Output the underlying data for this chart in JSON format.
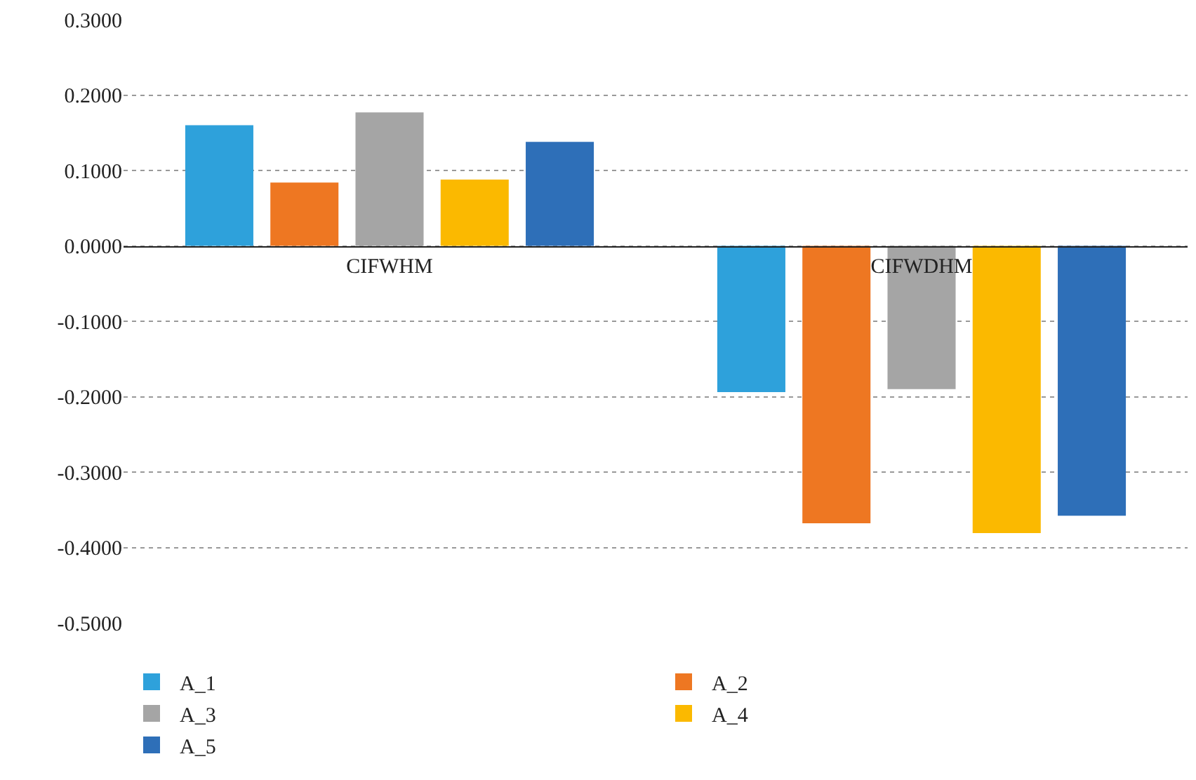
{
  "chart_data": {
    "type": "bar",
    "categories": [
      "CIFWHM",
      "CIFWDHM"
    ],
    "series": [
      {
        "name": "A_1",
        "color": "#2ea1db",
        "values": [
          0.16,
          -0.194
        ]
      },
      {
        "name": "A_2",
        "color": "#ee7722",
        "values": [
          0.084,
          -0.368
        ]
      },
      {
        "name": "A_3",
        "color": "#a5a5a5",
        "values": [
          0.177,
          -0.19
        ]
      },
      {
        "name": "A_4",
        "color": "#fbb900",
        "values": [
          0.088,
          -0.381
        ]
      },
      {
        "name": "A_5",
        "color": "#2e6fb8",
        "values": [
          0.138,
          -0.358
        ]
      }
    ],
    "ylim": [
      -0.5,
      0.3
    ],
    "yticks": [
      {
        "value": -0.5,
        "label": "-0.5000"
      },
      {
        "value": -0.4,
        "label": "-0.4000"
      },
      {
        "value": -0.3,
        "label": "-0.3000"
      },
      {
        "value": -0.2,
        "label": "-0.2000"
      },
      {
        "value": -0.1,
        "label": "-0.1000"
      },
      {
        "value": 0,
        "label": "0.0000"
      },
      {
        "value": 0.1,
        "label": "0.1000"
      },
      {
        "value": 0.2,
        "label": "0.2000"
      },
      {
        "value": 0.3,
        "label": "0.3000"
      }
    ],
    "grid": "y",
    "legend": "bottom"
  }
}
